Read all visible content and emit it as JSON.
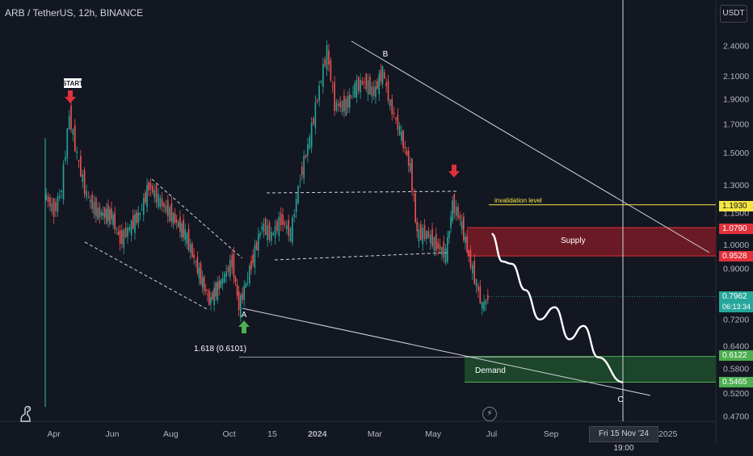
{
  "header": {
    "title": "ARB / TetherUS, 12h, BINANCE"
  },
  "price_axis": {
    "currency": "USDT"
  },
  "crosshair_date": "Fri 15 Nov '24   19:00",
  "icons": {
    "logo": "tradingview-dino-icon",
    "flash": "lightning-icon"
  },
  "colors": {
    "background": "#131722",
    "candle_up": "#26a69a",
    "candle_down": "#ef5350",
    "supply_zone": "#7a1b24",
    "demand_zone": "#1e4a2e",
    "invalidation": "#f5e642",
    "arrow_down": "#e0313b",
    "arrow_up": "#4caf50"
  },
  "annotations": {
    "start": "START",
    "point_a": "A",
    "point_b": "B",
    "point_c": "C",
    "fib": "1.618 (0.6101)",
    "invalidation": "invalidation level",
    "supply": "Supply",
    "demand": "Demand"
  },
  "price_tags": {
    "invalidation": "1.1930",
    "supply_top": "1.0790",
    "supply_bottom": "0.9528",
    "current_price": "0.7962",
    "countdown": "06:13:34",
    "demand_top": "0.6122",
    "demand_bottom": "0.5465"
  },
  "chart_data": {
    "type": "line",
    "title": "ARB / TetherUS, 12h, BINANCE",
    "y_scale": "log",
    "ylim": [
      0.45,
      2.7
    ],
    "y_ticks": [
      "2.4000",
      "2.1000",
      "1.9000",
      "1.7000",
      "1.5000",
      "1.3000",
      "1.1500",
      "1.0000",
      "0.9000",
      "0.7200",
      "0.6400",
      "0.5800",
      "0.5200",
      "0.4700"
    ],
    "x_ticks": [
      "Apr",
      "Jun",
      "Aug",
      "Oct",
      "15",
      "2024",
      "Mar",
      "May",
      "Jul",
      "Sep",
      "2025"
    ],
    "series": [
      {
        "values": [
          [
            "2023-03-23",
            1.25
          ],
          [
            "2023-04-02",
            1.16
          ],
          [
            "2023-04-10",
            1.28
          ],
          [
            "2023-04-18",
            1.78
          ],
          [
            "2023-04-26",
            1.48
          ],
          [
            "2023-05-06",
            1.24
          ],
          [
            "2023-05-18",
            1.15
          ],
          [
            "2023-06-01",
            1.14
          ],
          [
            "2023-06-10",
            1.02
          ],
          [
            "2023-06-20",
            1.08
          ],
          [
            "2023-07-01",
            1.15
          ],
          [
            "2023-07-10",
            1.3
          ],
          [
            "2023-07-20",
            1.22
          ],
          [
            "2023-08-01",
            1.15
          ],
          [
            "2023-08-17",
            1.05
          ],
          [
            "2023-08-28",
            0.92
          ],
          [
            "2023-09-11",
            0.78
          ],
          [
            "2023-09-25",
            0.86
          ],
          [
            "2023-10-05",
            0.93
          ],
          [
            "2023-10-12",
            0.76
          ],
          [
            "2023-10-25",
            0.92
          ],
          [
            "2023-11-05",
            1.09
          ],
          [
            "2023-11-15",
            1.04
          ],
          [
            "2023-11-25",
            1.12
          ],
          [
            "2023-12-05",
            1.05
          ],
          [
            "2023-12-15",
            1.35
          ],
          [
            "2023-12-25",
            1.6
          ],
          [
            "2024-01-04",
            2.0
          ],
          [
            "2024-01-12",
            2.35
          ],
          [
            "2024-01-20",
            1.85
          ],
          [
            "2024-02-01",
            1.85
          ],
          [
            "2024-02-10",
            2.0
          ],
          [
            "2024-02-20",
            2.05
          ],
          [
            "2024-03-01",
            1.95
          ],
          [
            "2024-03-10",
            2.15
          ],
          [
            "2024-03-18",
            1.85
          ],
          [
            "2024-03-28",
            1.65
          ],
          [
            "2024-04-08",
            1.4
          ],
          [
            "2024-04-15",
            1.05
          ],
          [
            "2024-04-25",
            1.05
          ],
          [
            "2024-05-05",
            1.0
          ],
          [
            "2024-05-15",
            0.96
          ],
          [
            "2024-05-22",
            1.2
          ],
          [
            "2024-05-30",
            1.12
          ],
          [
            "2024-06-08",
            0.95
          ],
          [
            "2024-06-16",
            0.84
          ],
          [
            "2024-06-22",
            0.76
          ],
          [
            "2024-06-28",
            0.7962
          ]
        ]
      }
    ],
    "projection": [
      [
        "2024-07-01",
        1.05
      ],
      [
        "2024-07-12",
        0.93
      ],
      [
        "2024-07-22",
        0.92
      ],
      [
        "2024-08-05",
        0.82
      ],
      [
        "2024-08-20",
        0.72
      ],
      [
        "2024-09-05",
        0.76
      ],
      [
        "2024-09-20",
        0.66
      ],
      [
        "2024-10-05",
        0.7
      ],
      [
        "2024-10-20",
        0.61
      ],
      [
        "2024-11-15",
        0.5465
      ]
    ],
    "zones": [
      {
        "name": "Supply",
        "from": 0.9528,
        "to": 1.079
      },
      {
        "name": "Demand",
        "from": 0.5465,
        "to": 0.6122
      }
    ],
    "levels": [
      {
        "name": "invalidation level",
        "value": 1.193
      },
      {
        "name": "1.618 (0.6101)",
        "value": 0.6101
      }
    ],
    "last_price": 0.7962
  }
}
